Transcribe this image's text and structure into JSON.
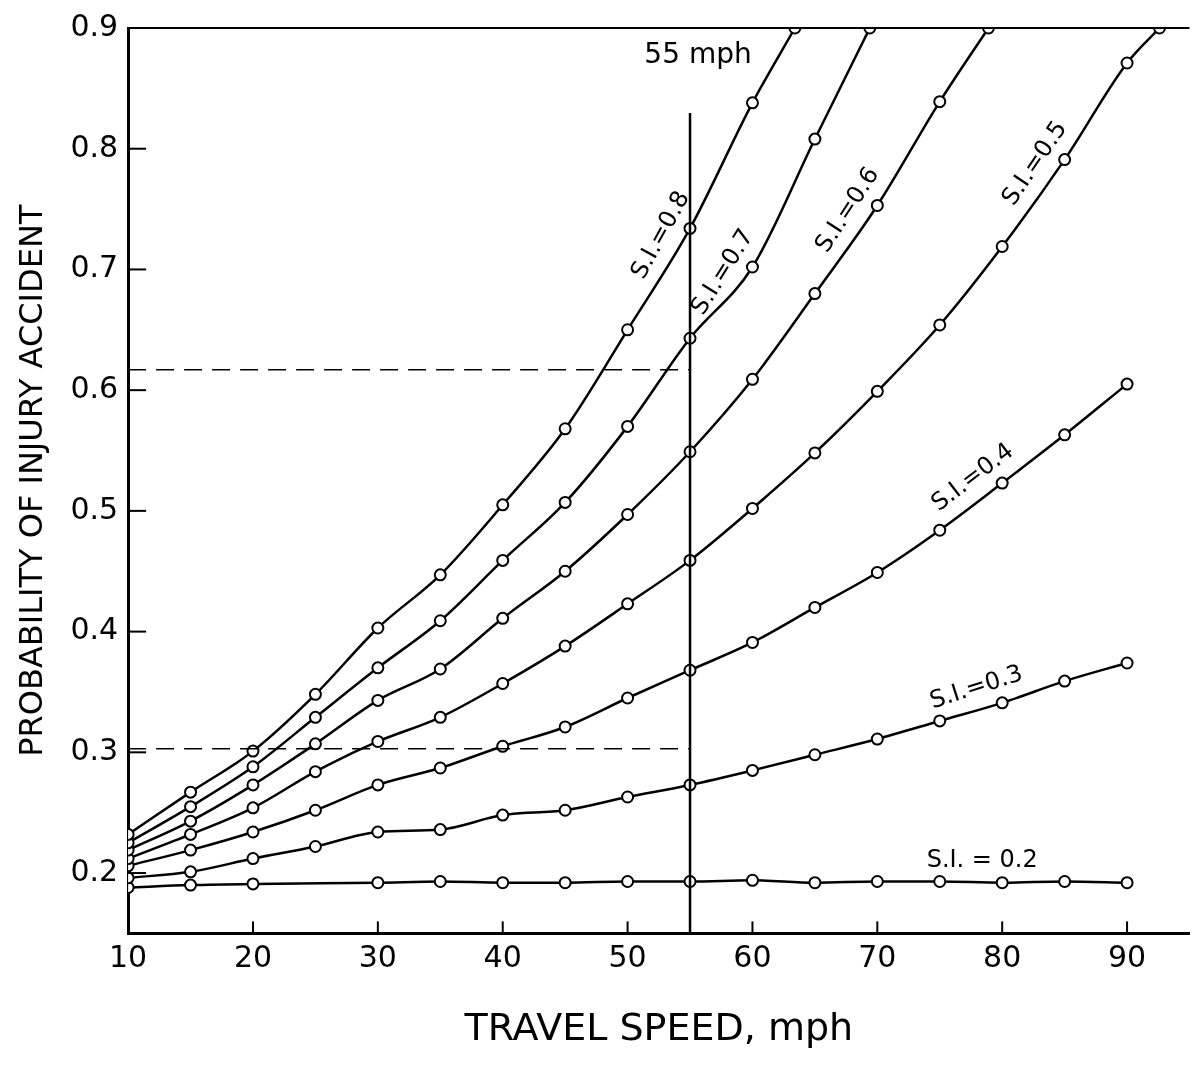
{
  "chart_data": {
    "type": "line",
    "xlabel": "TRAVEL SPEED, mph",
    "ylabel": "PROBABILITY OF INJURY ACCIDENT",
    "xlim": [
      10,
      95
    ],
    "ylim": [
      0.15,
      0.9
    ],
    "xticks": [
      10,
      20,
      30,
      40,
      50,
      60,
      70,
      80,
      90
    ],
    "yticks": [
      0.2,
      0.3,
      0.4,
      0.5,
      0.6,
      0.7,
      0.8,
      0.9
    ],
    "grid": false,
    "legend": false,
    "marker": "circle",
    "line_style": "solid",
    "series": [
      {
        "name": "S.I.=0.8",
        "color": "#000000",
        "x": [
          10,
          15,
          20,
          25,
          30,
          35,
          40,
          45,
          50,
          55,
          60,
          63.4
        ],
        "values": [
          0.232,
          0.267,
          0.301,
          0.348,
          0.403,
          0.447,
          0.505,
          0.568,
          0.65,
          0.734,
          0.838,
          0.9
        ]
      },
      {
        "name": "S.I.=0.7",
        "color": "#000000",
        "x": [
          10,
          15,
          20,
          25,
          30,
          35,
          40,
          45,
          50,
          55,
          60,
          65,
          69.4
        ],
        "values": [
          0.225,
          0.255,
          0.288,
          0.329,
          0.37,
          0.409,
          0.459,
          0.507,
          0.57,
          0.643,
          0.702,
          0.808,
          0.9
        ]
      },
      {
        "name": "S.I.=0.6",
        "color": "#000000",
        "x": [
          10,
          15,
          20,
          25,
          30,
          35,
          40,
          45,
          50,
          55,
          60,
          65,
          70,
          75,
          78.9
        ],
        "values": [
          0.219,
          0.243,
          0.273,
          0.307,
          0.343,
          0.369,
          0.411,
          0.45,
          0.497,
          0.549,
          0.609,
          0.68,
          0.753,
          0.839,
          0.9
        ]
      },
      {
        "name": "S.I.=0.5",
        "color": "#000000",
        "x": [
          10,
          15,
          20,
          25,
          30,
          35,
          40,
          45,
          50,
          55,
          60,
          65,
          70,
          75,
          80,
          85,
          90,
          92.6
        ],
        "values": [
          0.212,
          0.232,
          0.254,
          0.284,
          0.309,
          0.329,
          0.357,
          0.388,
          0.423,
          0.459,
          0.502,
          0.548,
          0.599,
          0.654,
          0.719,
          0.791,
          0.871,
          0.9
        ]
      },
      {
        "name": "S.I.=0.4",
        "color": "#000000",
        "x": [
          10,
          15,
          20,
          25,
          30,
          35,
          40,
          45,
          50,
          55,
          60,
          65,
          70,
          75,
          80,
          85,
          90
        ],
        "values": [
          0.206,
          0.219,
          0.234,
          0.252,
          0.273,
          0.287,
          0.305,
          0.321,
          0.345,
          0.368,
          0.391,
          0.42,
          0.449,
          0.484,
          0.523,
          0.563,
          0.605
        ]
      },
      {
        "name": "S.I.=0.3",
        "color": "#000000",
        "x": [
          10,
          15,
          20,
          25,
          30,
          35,
          40,
          45,
          50,
          55,
          60,
          65,
          70,
          75,
          80,
          85,
          90
        ],
        "values": [
          0.196,
          0.201,
          0.212,
          0.222,
          0.234,
          0.236,
          0.248,
          0.252,
          0.263,
          0.273,
          0.285,
          0.298,
          0.311,
          0.326,
          0.341,
          0.359,
          0.374
        ]
      },
      {
        "name": "S.I. = 0.2",
        "color": "#000000",
        "x": [
          10,
          15,
          20,
          30,
          35,
          40,
          45,
          50,
          55,
          60,
          65,
          70,
          75,
          80,
          85,
          90
        ],
        "values": [
          0.188,
          0.19,
          0.191,
          0.192,
          0.193,
          0.192,
          0.192,
          0.193,
          0.193,
          0.194,
          0.192,
          0.193,
          0.193,
          0.192,
          0.193,
          0.192
        ]
      }
    ],
    "ref_lines": [
      {
        "axis": "x",
        "value": 55,
        "label": "55 mph",
        "color": "#000000",
        "line_style": "solid"
      },
      {
        "axis": "y",
        "value": 0.617,
        "color": "#000000",
        "line_style": "dashed"
      },
      {
        "axis": "y",
        "value": 0.303,
        "color": "#000000",
        "line_style": "dashed"
      }
    ]
  }
}
